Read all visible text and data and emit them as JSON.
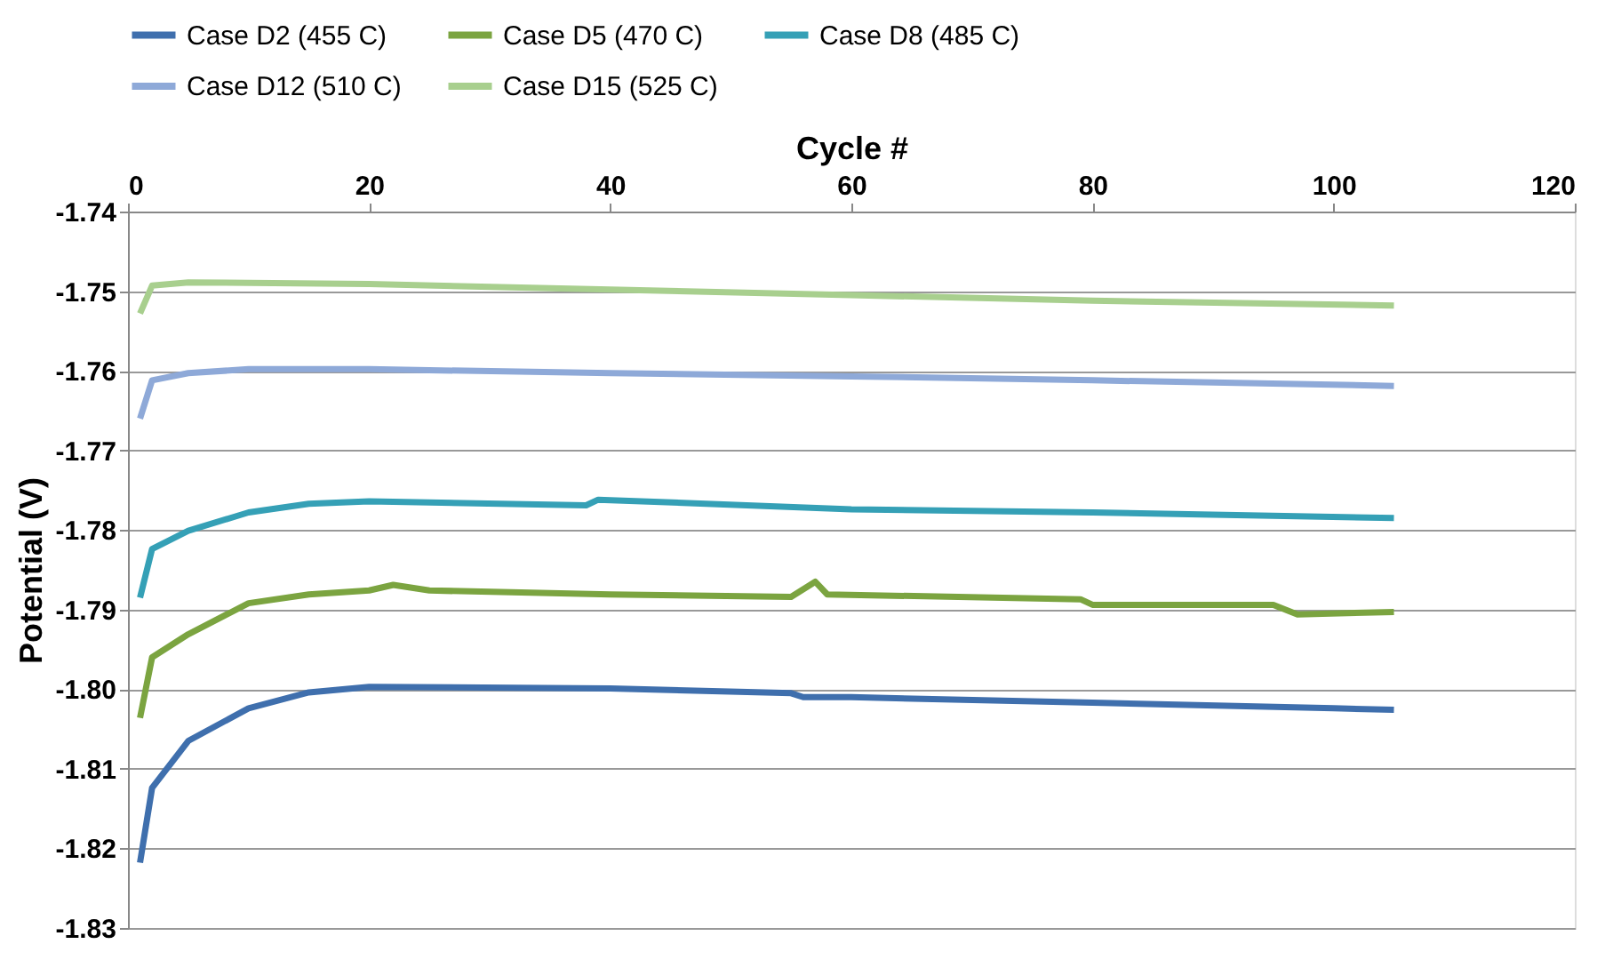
{
  "chart_data": {
    "type": "line",
    "xlabel": "Cycle #",
    "ylabel": "Potential (V)",
    "xlim": [
      0,
      120
    ],
    "xticks": [
      0,
      20,
      40,
      60,
      80,
      100,
      120
    ],
    "ylim": [
      -1.83,
      -1.74
    ],
    "yticks": [
      -1.83,
      -1.82,
      -1.81,
      {
        "value": -1.8,
        "label": "-1.80"
      },
      -1.79,
      -1.78,
      -1.77,
      -1.76,
      -1.75,
      -1.74
    ],
    "grid": "y",
    "legend": "top",
    "marker": "none",
    "line_style": "solid",
    "series": [
      {
        "name": "Case D2 (455 C)",
        "color": "#3f6fad",
        "x": [
          1,
          2,
          5,
          10,
          15,
          20,
          40,
          55,
          56,
          60,
          80,
          100,
          105
        ],
        "values": [
          -1.8218,
          -1.8124,
          -1.8065,
          -1.8024,
          -1.8004,
          -1.7997,
          -1.7999,
          -1.8005,
          -1.801,
          -1.801,
          -1.8017,
          -1.8024,
          -1.8026
        ]
      },
      {
        "name": "Case D5 (470 C)",
        "color": "#7ba440",
        "x": [
          1,
          2,
          5,
          10,
          15,
          20,
          22,
          25,
          40,
          55,
          57,
          58,
          79,
          80,
          95,
          97,
          105
        ],
        "values": [
          -1.8036,
          -1.796,
          -1.7931,
          -1.7892,
          -1.7881,
          -1.7876,
          -1.7869,
          -1.7876,
          -1.7881,
          -1.7884,
          -1.7865,
          -1.7881,
          -1.7887,
          -1.7894,
          -1.7894,
          -1.7906,
          -1.7903
        ]
      },
      {
        "name": "Case D8 (485 C)",
        "color": "#35a0b6",
        "x": [
          1,
          2,
          5,
          10,
          15,
          20,
          38,
          39,
          60,
          80,
          105
        ],
        "values": [
          -1.7885,
          -1.7824,
          -1.7801,
          -1.7778,
          -1.7767,
          -1.7764,
          -1.7769,
          -1.7762,
          -1.7774,
          -1.7778,
          -1.7785
        ]
      },
      {
        "name": "Case D12 (510 C)",
        "color": "#8ea9d8",
        "x": [
          1,
          2,
          5,
          10,
          20,
          40,
          60,
          80,
          105
        ],
        "values": [
          -1.766,
          -1.7612,
          -1.7603,
          -1.7598,
          -1.7598,
          -1.7603,
          -1.7607,
          -1.7612,
          -1.7619
        ]
      },
      {
        "name": "Case D15 (525 C)",
        "color": "#a8cf8e",
        "x": [
          1,
          2,
          5,
          20,
          40,
          60,
          80,
          105
        ],
        "values": [
          -1.7528,
          -1.7493,
          -1.7489,
          -1.7491,
          -1.7498,
          -1.7505,
          -1.7512,
          -1.7518
        ]
      }
    ]
  }
}
